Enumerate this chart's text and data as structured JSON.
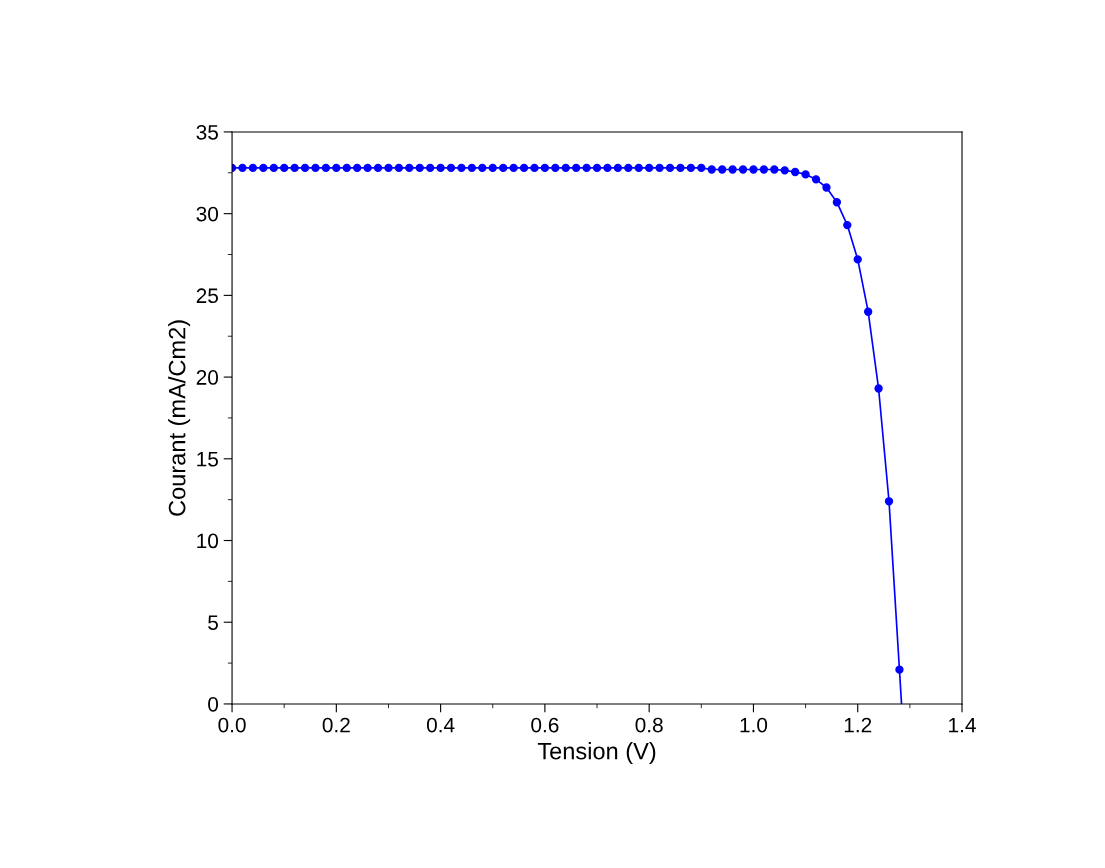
{
  "chart_data": {
    "type": "line",
    "xlabel": "Tension (V)",
    "ylabel": "Courant (mA/Cm2)",
    "x": [
      0.0,
      0.02,
      0.04,
      0.06,
      0.08,
      0.1,
      0.12,
      0.14,
      0.16,
      0.18,
      0.2,
      0.22,
      0.24,
      0.26,
      0.28,
      0.3,
      0.32,
      0.34,
      0.36,
      0.38,
      0.4,
      0.42,
      0.44,
      0.46,
      0.48,
      0.5,
      0.52,
      0.54,
      0.56,
      0.58,
      0.6,
      0.62,
      0.64,
      0.66,
      0.68,
      0.7,
      0.72,
      0.74,
      0.76,
      0.78,
      0.8,
      0.82,
      0.84,
      0.86,
      0.88,
      0.9,
      0.92,
      0.94,
      0.96,
      0.98,
      1.0,
      1.02,
      1.04,
      1.06,
      1.08,
      1.1,
      1.12,
      1.14,
      1.16,
      1.18,
      1.2,
      1.22,
      1.24,
      1.26,
      1.28
    ],
    "series": [
      {
        "color": "#0000ff",
        "marker": "circle",
        "values": [
          32.8,
          32.8,
          32.8,
          32.8,
          32.8,
          32.8,
          32.8,
          32.8,
          32.8,
          32.8,
          32.8,
          32.8,
          32.8,
          32.8,
          32.8,
          32.8,
          32.8,
          32.8,
          32.8,
          32.8,
          32.8,
          32.8,
          32.8,
          32.8,
          32.8,
          32.8,
          32.8,
          32.8,
          32.8,
          32.8,
          32.8,
          32.8,
          32.8,
          32.8,
          32.8,
          32.8,
          32.8,
          32.8,
          32.8,
          32.8,
          32.8,
          32.8,
          32.8,
          32.8,
          32.8,
          32.8,
          32.7,
          32.7,
          32.7,
          32.7,
          32.7,
          32.7,
          32.7,
          32.65,
          32.55,
          32.4,
          32.1,
          31.6,
          30.7,
          29.3,
          27.2,
          24.0,
          19.3,
          12.4,
          2.1
        ]
      },
      {
        "color": "#0000ff",
        "marker": "none",
        "x": [
          1.28,
          1.284
        ],
        "values": [
          2.1,
          0
        ]
      }
    ],
    "xlim": [
      0,
      1.4
    ],
    "ylim": [
      0,
      35
    ],
    "xticks": [
      {
        "value": 0,
        "label": "0.0"
      },
      {
        "value": 0.1,
        "label": null
      },
      {
        "value": 0.2,
        "label": "0.2"
      },
      {
        "value": 0.3,
        "label": null
      },
      {
        "value": 0.4,
        "label": "0.4"
      },
      {
        "value": 0.5,
        "label": null
      },
      {
        "value": 0.6,
        "label": "0.6"
      },
      {
        "value": 0.7,
        "label": null
      },
      {
        "value": 0.8,
        "label": "0.8"
      },
      {
        "value": 0.9,
        "label": null
      },
      {
        "value": 1.0,
        "label": "1.0"
      },
      {
        "value": 1.1,
        "label": null
      },
      {
        "value": 1.2,
        "label": "1.2"
      },
      {
        "value": 1.3,
        "label": null
      },
      {
        "value": 1.4,
        "label": "1.4"
      }
    ],
    "yticks": [
      0,
      {
        "value": 2.5,
        "label": null
      },
      5,
      {
        "value": 7.5,
        "label": null
      },
      10,
      {
        "value": 12.5,
        "label": null
      },
      15,
      {
        "value": 17.5,
        "label": null
      },
      20,
      {
        "value": 22.5,
        "label": null
      },
      25,
      {
        "value": 27.5,
        "label": null
      },
      30,
      {
        "value": 32.5,
        "label": null
      },
      35
    ],
    "grid": false,
    "legend": false,
    "line_style": "solid"
  }
}
